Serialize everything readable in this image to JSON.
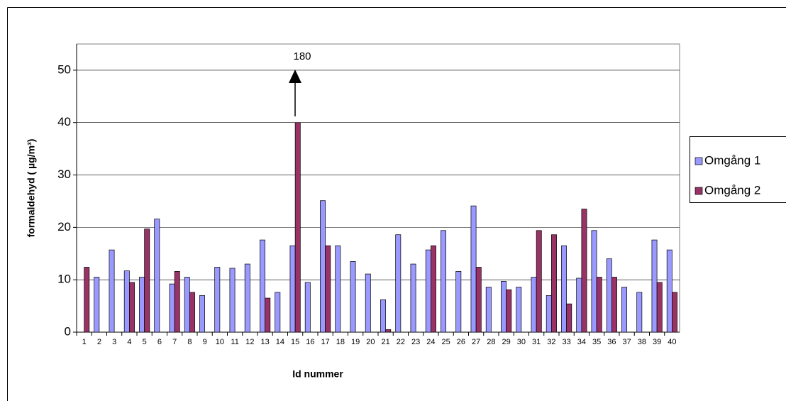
{
  "chart_data": {
    "type": "bar",
    "y_label": "formaldehyd ( µg/m³)",
    "x_label": "Id nummer",
    "annotation": "180",
    "categories": [
      "1",
      "2",
      "3",
      "4",
      "5",
      "6",
      "7",
      "8",
      "9",
      "10",
      "11",
      "12",
      "13",
      "14",
      "15",
      "16",
      "17",
      "18",
      "19",
      "20",
      "21",
      "22",
      "23",
      "24",
      "25",
      "26",
      "27",
      "28",
      "29",
      "30",
      "31",
      "32",
      "33",
      "34",
      "35",
      "36",
      "37",
      "38",
      "39",
      "40"
    ],
    "series": [
      {
        "name": "Omgång 1",
        "color": "#9999ff",
        "values": [
          null,
          10.5,
          15.7,
          11.7,
          10.5,
          21.6,
          9.2,
          10.5,
          7.0,
          12.4,
          12.2,
          13.0,
          17.6,
          7.6,
          16.5,
          9.5,
          25.1,
          16.5,
          13.5,
          11.1,
          6.2,
          18.6,
          13.0,
          15.7,
          19.4,
          11.6,
          24.1,
          8.6,
          9.7,
          8.6,
          10.5,
          7.0,
          16.5,
          10.3,
          19.4,
          14.0,
          8.6,
          7.6,
          17.6,
          15.7
        ]
      },
      {
        "name": "Omgång 2",
        "color": "#993366",
        "values": [
          12.4,
          null,
          null,
          9.5,
          19.7,
          null,
          11.6,
          7.6,
          null,
          null,
          null,
          null,
          6.5,
          null,
          40,
          null,
          16.5,
          null,
          null,
          null,
          0.5,
          null,
          null,
          16.5,
          null,
          null,
          12.4,
          null,
          8.1,
          null,
          19.4,
          18.6,
          5.4,
          23.5,
          10.5,
          10.5,
          null,
          null,
          9.5,
          7.6
        ]
      }
    ],
    "ylim": [
      0,
      55
    ],
    "yticks": [
      0,
      10,
      20,
      30,
      40,
      50
    ],
    "grid": true
  }
}
